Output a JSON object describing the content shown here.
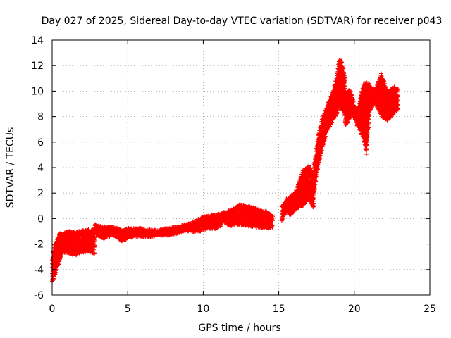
{
  "chart_data": {
    "type": "scatter",
    "title": "Day 027 of 2025, Sidereal Day-to-day VTEC variation (SDTVAR) for receiver p043",
    "xlabel": "GPS time / hours",
    "ylabel": "SDTVAR / TECUs",
    "xlim": [
      0,
      25
    ],
    "ylim": [
      -6,
      14
    ],
    "x_ticks": [
      "0",
      "5",
      "10",
      "15",
      "20",
      "25"
    ],
    "y_ticks": [
      "-6",
      "-4",
      "-2",
      "0",
      "2",
      "4",
      "6",
      "8",
      "10",
      "12",
      "14"
    ],
    "grid": true,
    "marker": "+",
    "series": [
      {
        "name": "SDTVAR",
        "color": "#ff0000",
        "bands": [
          {
            "x": [
              0.0,
              0.15,
              0.3,
              0.45,
              0.6,
              0.8
            ],
            "lo": [
              -5.0,
              -4.6,
              -4.0,
              -3.6,
              -3.0,
              -2.2
            ],
            "hi": [
              -3.0,
              -2.0,
              -1.6,
              -1.2,
              -1.0,
              -1.8
            ]
          },
          {
            "x": [
              0.6,
              1.0,
              1.5,
              2.0,
              2.4,
              2.8
            ],
            "lo": [
              -2.6,
              -2.8,
              -2.9,
              -2.7,
              -2.6,
              -2.8
            ],
            "hi": [
              -1.2,
              -0.9,
              -1.0,
              -0.9,
              -0.8,
              -0.9
            ]
          },
          {
            "x": [
              2.8,
              3.4,
              4.0,
              4.6,
              5.2,
              5.8,
              6.4,
              7.0,
              7.6,
              8.2,
              8.8,
              9.2,
              9.6,
              10.0,
              10.4,
              10.8,
              11.2
            ],
            "lo": [
              -1.2,
              -1.6,
              -1.3,
              -1.8,
              -1.5,
              -1.4,
              -1.5,
              -1.3,
              -1.4,
              -1.2,
              -1.0,
              -1.0,
              -1.1,
              -0.9,
              -0.8,
              -0.8,
              -0.6
            ],
            "hi": [
              -0.4,
              -0.6,
              -0.6,
              -0.8,
              -0.7,
              -0.7,
              -0.8,
              -0.9,
              -0.7,
              -0.6,
              -0.4,
              -0.3,
              0.0,
              0.2,
              0.3,
              0.4,
              0.5
            ]
          },
          {
            "x": [
              11.2,
              11.8,
              12.4,
              13.0,
              13.6,
              14.2,
              14.6
            ],
            "lo": [
              -0.2,
              -0.6,
              -0.5,
              -0.6,
              -0.7,
              -0.8,
              -0.7
            ],
            "hi": [
              0.5,
              0.7,
              1.2,
              1.0,
              0.8,
              0.6,
              0.3
            ]
          },
          {
            "x": [
              15.2,
              15.5,
              15.8,
              16.2,
              16.6,
              17.0,
              17.3
            ],
            "lo": [
              -0.2,
              0.5,
              0.2,
              0.8,
              1.0,
              1.5,
              0.8
            ],
            "hi": [
              1.0,
              1.6,
              1.8,
              2.4,
              3.8,
              4.2,
              3.5
            ]
          },
          {
            "x": [
              17.3,
              17.6,
              17.9,
              18.2,
              18.5,
              18.8,
              19.0,
              19.2,
              19.4
            ],
            "lo": [
              1.5,
              4.0,
              5.5,
              6.8,
              7.5,
              8.0,
              8.8,
              8.5,
              8.0
            ],
            "hi": [
              4.0,
              6.5,
              8.0,
              9.0,
              9.8,
              11.0,
              12.6,
              12.3,
              11.0
            ]
          },
          {
            "x": [
              19.4,
              19.6,
              19.8,
              20.0,
              20.2,
              20.4,
              20.6,
              20.8,
              21.0
            ],
            "lo": [
              7.3,
              7.6,
              8.0,
              7.8,
              7.2,
              6.8,
              6.2,
              5.0,
              8.0
            ],
            "hi": [
              9.5,
              10.2,
              10.0,
              9.0,
              8.6,
              9.5,
              10.6,
              10.8,
              10.6
            ]
          },
          {
            "x": [
              21.0,
              21.4,
              21.8,
              22.2,
              22.6,
              22.9
            ],
            "lo": [
              8.4,
              9.0,
              8.0,
              7.6,
              8.2,
              8.5
            ],
            "hi": [
              10.4,
              10.2,
              11.5,
              10.0,
              10.4,
              10.2
            ]
          }
        ]
      }
    ]
  }
}
